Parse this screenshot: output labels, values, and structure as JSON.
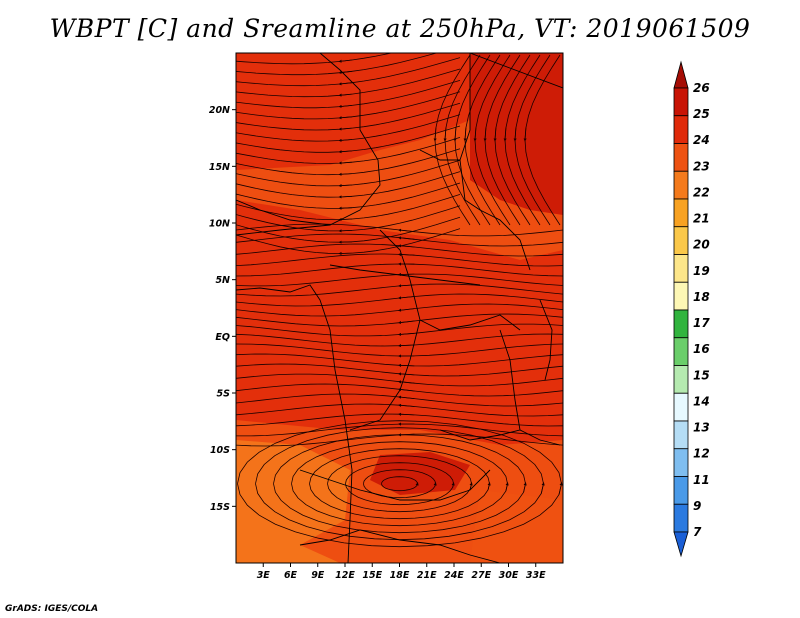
{
  "title": "WBPT [C] and Sreamline at 250hPa, VT: 2019061509",
  "credit": "GrADS: IGES/COLA",
  "map": {
    "lon_range": [
      0,
      36
    ],
    "lat_range": [
      -20,
      25
    ],
    "lat_ticks": [
      {
        "value": 20,
        "label": "20N"
      },
      {
        "value": 15,
        "label": "15N"
      },
      {
        "value": 10,
        "label": "10N"
      },
      {
        "value": 5,
        "label": "5N"
      },
      {
        "value": 0,
        "label": "EQ"
      },
      {
        "value": -5,
        "label": "5S"
      },
      {
        "value": -10,
        "label": "10S"
      },
      {
        "value": -15,
        "label": "15S"
      }
    ],
    "lon_ticks": [
      {
        "value": 3,
        "label": "3E"
      },
      {
        "value": 6,
        "label": "6E"
      },
      {
        "value": 9,
        "label": "9E"
      },
      {
        "value": 12,
        "label": "12E"
      },
      {
        "value": 15,
        "label": "15E"
      },
      {
        "value": 18,
        "label": "18E"
      },
      {
        "value": 21,
        "label": "21E"
      },
      {
        "value": 24,
        "label": "24E"
      },
      {
        "value": 27,
        "label": "27E"
      },
      {
        "value": 30,
        "label": "30E"
      },
      {
        "value": 33,
        "label": "33E"
      }
    ],
    "background_color": "#e83a10",
    "shading_colors": {
      "c24": "#e02a0a",
      "c25": "#c81405",
      "c23": "#ee5212",
      "c22": "#f47a1c"
    },
    "line_color": "#1a0000"
  },
  "colorbar": {
    "labels": [
      "26",
      "25",
      "24",
      "23",
      "22",
      "21",
      "20",
      "19",
      "18",
      "17",
      "16",
      "15",
      "14",
      "13",
      "12",
      "11",
      "9",
      "7"
    ],
    "colors": [
      "#a50d05",
      "#c81405",
      "#e02a0a",
      "#ee5212",
      "#f47a1c",
      "#f8a222",
      "#fbc84a",
      "#fde68a",
      "#fdf7b5",
      "#31b43e",
      "#6ace6a",
      "#b5eab0",
      "#e7f9ff",
      "#b5ddf5",
      "#7fbef0",
      "#4a9ae8",
      "#2b7ae0",
      "#1a5fd6"
    ]
  }
}
